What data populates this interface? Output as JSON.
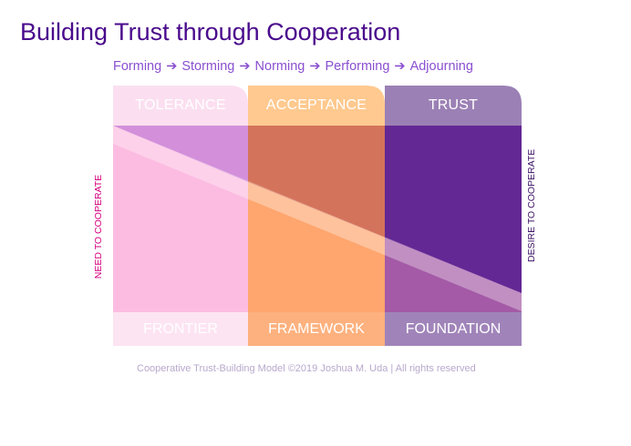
{
  "title": "Building Trust through Cooperation",
  "stages": [
    "Forming",
    "Storming",
    "Norming",
    "Performing",
    "Adjourning"
  ],
  "stage_arrow": "➔",
  "columns": [
    {
      "header": "TOLERANCE",
      "footer": "FRONTIER"
    },
    {
      "header": "ACCEPTANCE",
      "footer": "FRAMEWORK"
    },
    {
      "header": "TRUST",
      "footer": "FOUNDATION"
    }
  ],
  "left_axis_label": "NEED TO COOPERATE",
  "right_axis_label": "DESIRE TO COOPERATE",
  "footer": "Cooperative Trust-Building Model ©2019 Joshua M. Uda | All rights reserved",
  "colors": {
    "title": "#4a0a8c",
    "stages": "#8a4fd0",
    "need": "#d6007e",
    "desire": "#3d1366",
    "col1_header": "#fbdff0",
    "col2_header": "#ffc98f",
    "col3_header": "#9b80b5",
    "col1_body": "#fcbce1",
    "col2_body": "#fea66e",
    "col3_body": "#a45aa6",
    "col1_footer": "#fde4f2",
    "col2_footer": "#fdb17e",
    "col3_footer": "#a084b9"
  }
}
